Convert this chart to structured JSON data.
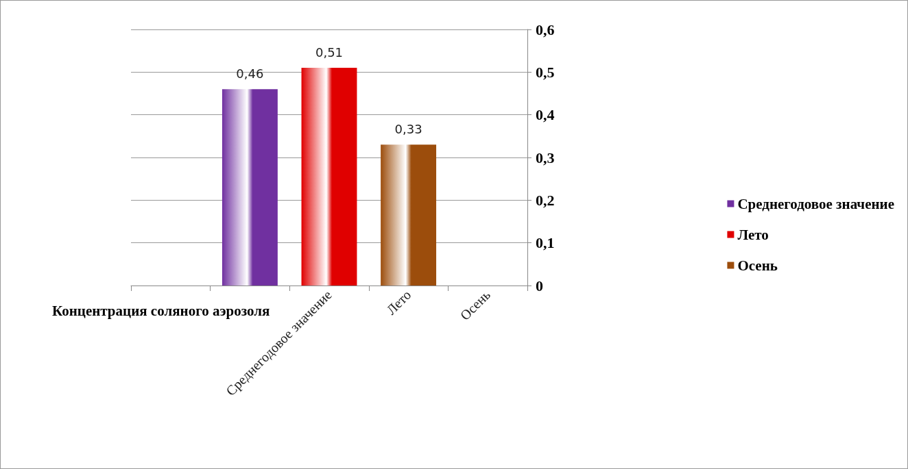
{
  "chart_data": {
    "type": "bar",
    "xlabel": "Концентрация соляного аэрозоля",
    "categories": [
      null,
      null,
      "Среднегодовое значение",
      "Лето",
      "Осень"
    ],
    "series": [
      {
        "name": "Среднегодовое значение",
        "color": "#7030a0",
        "values": [
          null,
          0.46,
          null,
          null,
          null
        ],
        "value_labels": [
          null,
          "0,46",
          null,
          null,
          null
        ]
      },
      {
        "name": "Лето",
        "color": "#e00000",
        "values": [
          null,
          null,
          0.51,
          null,
          null
        ],
        "value_labels": [
          null,
          null,
          "0,51",
          null,
          null
        ]
      },
      {
        "name": "Осень",
        "color": "#9c4d0c",
        "values": [
          null,
          null,
          null,
          0.33,
          null
        ],
        "value_labels": [
          null,
          null,
          null,
          "0,33",
          null
        ]
      }
    ],
    "ylim": [
      0,
      0.6
    ],
    "yticks": [
      {
        "value": 0,
        "label": "0"
      },
      {
        "value": 0.1,
        "label": "0,1"
      },
      {
        "value": 0.2,
        "label": "0,2"
      },
      {
        "value": 0.3,
        "label": "0,3"
      },
      {
        "value": 0.4,
        "label": "0,4"
      },
      {
        "value": 0.5,
        "label": "0,5"
      },
      {
        "value": 0.6,
        "label": "0,6"
      }
    ],
    "grid": "y",
    "legend": "right"
  }
}
